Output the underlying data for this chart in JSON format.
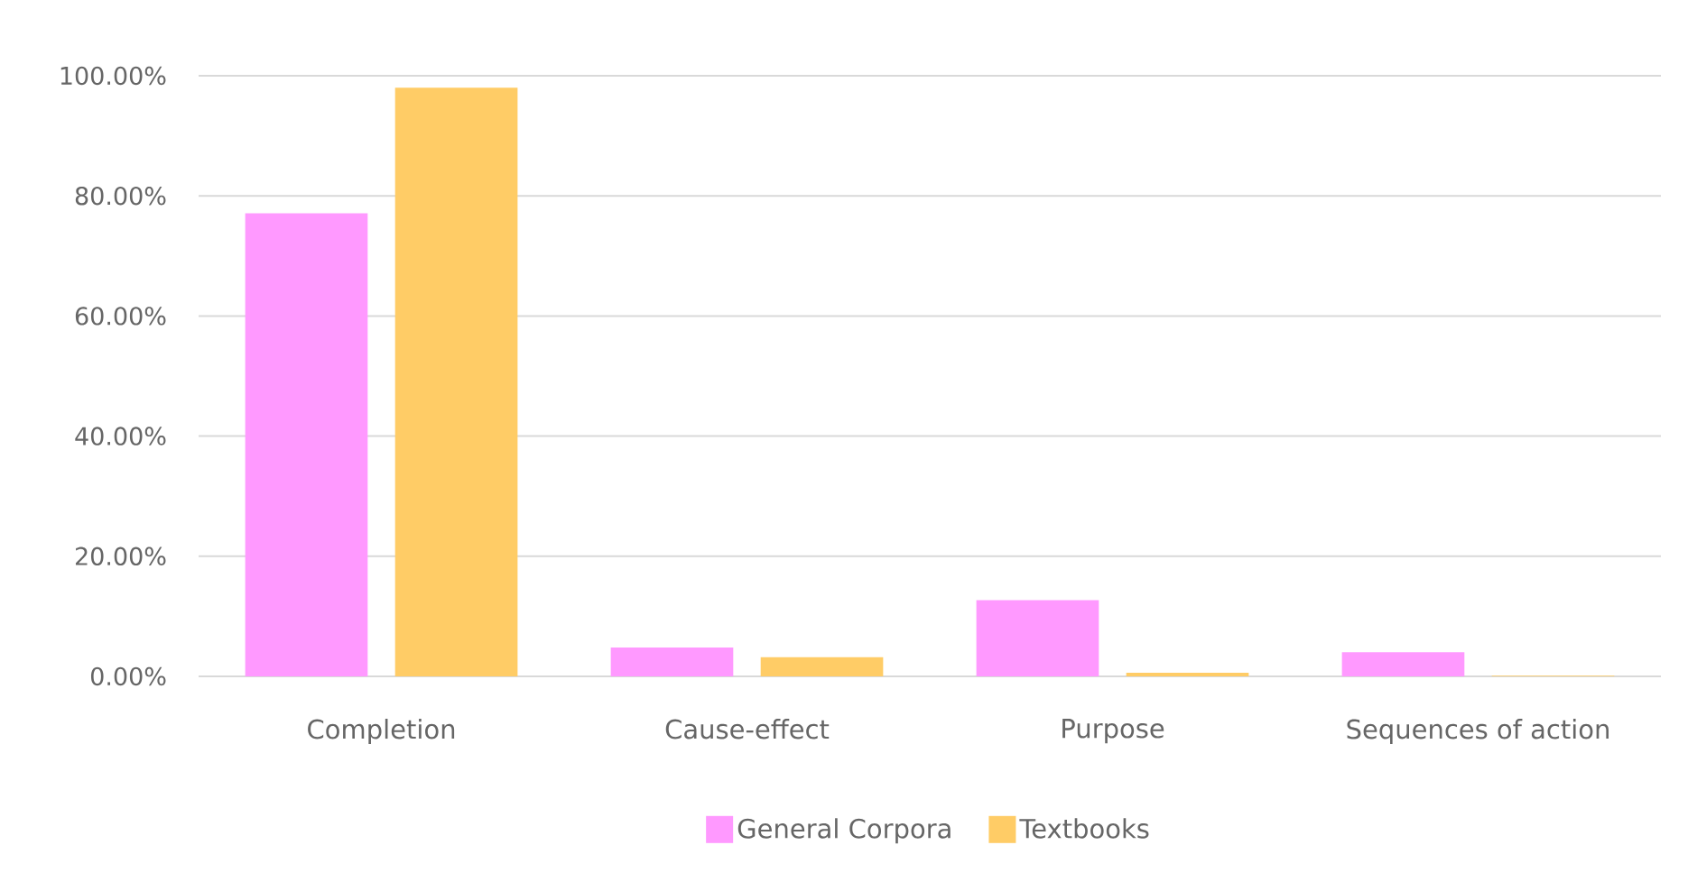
{
  "chart_data": {
    "type": "bar",
    "categories": [
      "Completion",
      "Cause-effect",
      "Purpose",
      "Sequences of action"
    ],
    "series": [
      {
        "name": "General Corpora",
        "color": "#ff99ff",
        "values": [
          77.1,
          4.8,
          12.7,
          4.0
        ]
      },
      {
        "name": "Textbooks",
        "color": "#ffcc66",
        "values": [
          98.0,
          3.2,
          0.6,
          0.1
        ]
      }
    ],
    "ylim": [
      0,
      100
    ],
    "yticks": [
      {
        "value": 0,
        "label": "0.00%"
      },
      {
        "value": 20,
        "label": "20.00%"
      },
      {
        "value": 40,
        "label": "40.00%"
      },
      {
        "value": 60,
        "label": "60.00%"
      },
      {
        "value": 80,
        "label": "80.00%"
      },
      {
        "value": 100,
        "label": "100.00%"
      }
    ],
    "grid": "y",
    "legend": "bottom"
  }
}
